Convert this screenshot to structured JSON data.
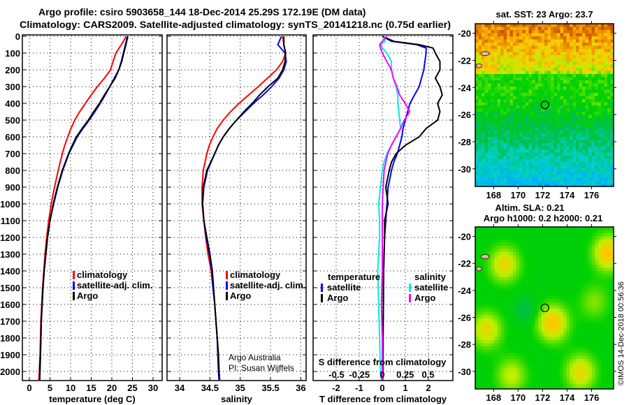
{
  "title": {
    "line1": "Argo profile: csiro 5903658_144 18-Dec-2014 25.29S 172.19E (DM data)",
    "line2": "Climatology: CARS2009. Satellite-adjusted climatology: synTS_20141218.nc (0.75d earlier)"
  },
  "credit": {
    "line1": "Argo Australia",
    "line2": "PI: Susan Wijffels"
  },
  "timestamp": "©IMOS 14-Dec-2018 00:56:36",
  "colors": {
    "climatology": "#ff0000",
    "satellite_t": "#0000ff",
    "argo_t": "#000000",
    "satellite_s": "#00e8e8",
    "argo_s": "#ff00ff"
  },
  "chart_data": [
    {
      "type": "line",
      "id": "temperature",
      "xlabel": "temperature (deg C)",
      "ylabel": "",
      "xlim": [
        -1.7,
        32
      ],
      "ylim": [
        2055,
        0
      ],
      "xticks": [
        "0",
        "5",
        "10",
        "15",
        "20",
        "25",
        "30"
      ],
      "yticks": [
        "0",
        "100",
        "200",
        "300",
        "400",
        "500",
        "600",
        "700",
        "800",
        "900",
        "1000",
        "1100",
        "1200",
        "1300",
        "1400",
        "1500",
        "1600",
        "1700",
        "1800",
        "1900",
        "2000"
      ],
      "grid": true,
      "legend": [
        "climatology",
        "satellite-adj. clim.",
        "Argo"
      ],
      "depths": [
        0,
        50,
        100,
        150,
        200,
        250,
        300,
        350,
        400,
        450,
        500,
        550,
        600,
        650,
        700,
        800,
        900,
        1000,
        1100,
        1200,
        1300,
        1400,
        1500,
        1600,
        1700,
        1800,
        1900,
        2000,
        2050
      ],
      "series": [
        {
          "name": "climatology",
          "values": [
            23.5,
            22.3,
            21.0,
            20.3,
            19.7,
            18.2,
            16.5,
            15.0,
            13.6,
            12.2,
            11.0,
            10.1,
            9.3,
            8.6,
            8.0,
            7.0,
            6.1,
            5.3,
            4.7,
            4.2,
            3.8,
            3.5,
            3.2,
            3.0,
            2.8,
            2.7,
            2.6,
            2.4,
            2.3
          ]
        },
        {
          "name": "satellite-adj. clim.",
          "values": [
            23.8,
            23.3,
            22.8,
            22.3,
            21.7,
            20.6,
            19.5,
            18.4,
            17.2,
            15.9,
            14.5,
            13.0,
            11.6,
            10.6,
            9.6,
            8.1,
            6.9,
            5.9,
            5.0,
            4.4,
            4.0,
            3.6,
            3.3,
            3.1,
            2.9,
            2.8,
            2.7,
            2.6,
            2.5
          ]
        },
        {
          "name": "Argo",
          "values": [
            23.9,
            23.4,
            22.9,
            22.4,
            21.7,
            20.8,
            19.5,
            18.2,
            17.0,
            15.6,
            14.3,
            12.8,
            11.4,
            10.4,
            9.5,
            8.0,
            6.8,
            5.8,
            5.0,
            4.4,
            4.0,
            3.6,
            3.3,
            3.1,
            2.9,
            2.8,
            2.7,
            2.5,
            2.5
          ]
        }
      ]
    },
    {
      "type": "line",
      "id": "salinity",
      "xlabel": "salinity",
      "xlim": [
        33.8,
        36.1
      ],
      "ylim": [
        2055,
        0
      ],
      "xticks": [
        "34",
        "34.5",
        "35",
        "35.5",
        "36"
      ],
      "grid": true,
      "legend": [
        "climatology",
        "satellite-adj. clim.",
        "Argo"
      ],
      "depths": [
        0,
        50,
        100,
        150,
        200,
        250,
        300,
        350,
        400,
        450,
        500,
        550,
        600,
        650,
        700,
        800,
        900,
        1000,
        1100,
        1200,
        1300,
        1400,
        1500,
        1600,
        1700,
        1800,
        1900,
        2000,
        2050
      ],
      "series": [
        {
          "name": "climatology",
          "values": [
            35.7,
            35.72,
            35.75,
            35.7,
            35.6,
            35.45,
            35.3,
            35.14,
            34.98,
            34.84,
            34.72,
            34.62,
            34.55,
            34.49,
            34.45,
            34.39,
            34.37,
            34.37,
            34.4,
            34.43,
            34.47,
            34.52,
            34.55,
            34.58,
            34.6,
            34.62,
            34.64,
            34.65,
            34.66
          ]
        },
        {
          "name": "satellite-adj. clim.",
          "values": [
            35.68,
            35.62,
            35.74,
            35.76,
            35.72,
            35.64,
            35.52,
            35.38,
            35.22,
            35.08,
            34.94,
            34.82,
            34.72,
            34.64,
            34.58,
            34.46,
            34.4,
            34.38,
            34.4,
            34.44,
            34.49,
            34.53,
            34.55,
            34.58,
            34.6,
            34.62,
            34.63,
            34.64,
            34.65
          ]
        },
        {
          "name": "Argo",
          "values": [
            35.72,
            35.72,
            35.75,
            35.74,
            35.7,
            35.62,
            35.46,
            35.32,
            35.2,
            35.06,
            34.94,
            34.82,
            34.72,
            34.64,
            34.58,
            34.45,
            34.39,
            34.38,
            34.4,
            34.45,
            34.5,
            34.54,
            34.56,
            34.58,
            34.6,
            34.62,
            34.64,
            34.65,
            34.66
          ]
        }
      ]
    },
    {
      "type": "line",
      "id": "difference",
      "xlabel": "T difference from climatology",
      "xlabel2": "S difference from climatology",
      "xlim": [
        -3,
        3
      ],
      "xlim_s": [
        -0.75,
        0.75
      ],
      "ylim": [
        2055,
        0
      ],
      "xticks": [
        "-2",
        "-1",
        "0",
        "1",
        "2"
      ],
      "xticks_s": [
        "-0.5",
        "-0.25",
        "0",
        "0.25",
        "0.5"
      ],
      "grid": true,
      "legend_t": {
        "title": "temperature",
        "items": [
          "satellite",
          "Argo"
        ]
      },
      "legend_s": {
        "title": "salinity",
        "items": [
          "satellite",
          "Argo"
        ]
      },
      "depths": [
        0,
        30,
        50,
        70,
        100,
        150,
        200,
        250,
        300,
        350,
        400,
        450,
        500,
        550,
        600,
        650,
        700,
        750,
        800,
        900,
        1000,
        1100,
        1200,
        1400,
        1600,
        1800,
        2000,
        2050
      ],
      "series": [
        {
          "name": "temperature satellite",
          "values": [
            0.0,
            0.4,
            1.5,
            1.9,
            1.9,
            1.85,
            1.8,
            1.7,
            1.6,
            1.4,
            1.2,
            1.1,
            1.0,
            0.9,
            0.85,
            0.75,
            0.65,
            0.5,
            0.4,
            0.25,
            0.2,
            0.15,
            0.1,
            0.06,
            0.05,
            0.03,
            0.03,
            0.02
          ]
        },
        {
          "name": "temperature Argo",
          "values": [
            0.0,
            0.5,
            1.6,
            2.2,
            2.3,
            2.5,
            2.5,
            2.3,
            2.5,
            2.6,
            2.4,
            2.5,
            2.4,
            1.9,
            1.6,
            1.0,
            0.6,
            0.4,
            0.3,
            0.15,
            0.25,
            0.1,
            0.1,
            0.05,
            0.05,
            0.03,
            0.0,
            0.0
          ]
        },
        {
          "name": "salinity satellite",
          "values": [
            0.03,
            0.03,
            -0.02,
            0.0,
            0.05,
            0.1,
            0.1,
            0.12,
            0.15,
            0.17,
            0.17,
            0.18,
            0.19,
            0.2,
            0.15,
            0.1,
            0.05,
            0.02,
            0.0,
            -0.02,
            -0.04,
            -0.03,
            -0.03,
            -0.05,
            -0.04,
            -0.03,
            -0.02,
            -0.01
          ]
        },
        {
          "name": "salinity Argo",
          "values": [
            0.05,
            0.0,
            -0.03,
            -0.02,
            0.0,
            0.05,
            0.1,
            0.12,
            0.16,
            0.19,
            0.25,
            0.3,
            0.24,
            0.2,
            0.15,
            0.1,
            0.06,
            0.04,
            0.02,
            0.01,
            0.0,
            0.0,
            0.0,
            0.0,
            -0.01,
            0.0,
            0.0,
            0.0
          ]
        }
      ]
    },
    {
      "type": "heatmap",
      "id": "sst-map",
      "title": "sat. SST: 23 Argo: 23.7",
      "xlim": [
        166.5,
        177.8
      ],
      "ylim": [
        -31.3,
        -19.3
      ],
      "xticks": [
        "168",
        "170",
        "172",
        "174",
        "176"
      ],
      "yticks": [
        "-20",
        "-22",
        "-24",
        "-26",
        "-28",
        "-30"
      ],
      "marker": {
        "lon": 172.19,
        "lat": -25.29
      }
    },
    {
      "type": "heatmap",
      "id": "sla-map",
      "title": "Altim. SLA: 0.21",
      "subtitle": "Argo h1000: 0.2 h2000: 0.21",
      "xlim": [
        166.5,
        177.8
      ],
      "ylim": [
        -31.3,
        -19.3
      ],
      "xticks": [
        "168",
        "170",
        "172",
        "174",
        "176"
      ],
      "yticks": [
        "-20",
        "-22",
        "-24",
        "-26",
        "-28",
        "-30"
      ],
      "marker": {
        "lon": 172.19,
        "lat": -25.29
      }
    }
  ]
}
